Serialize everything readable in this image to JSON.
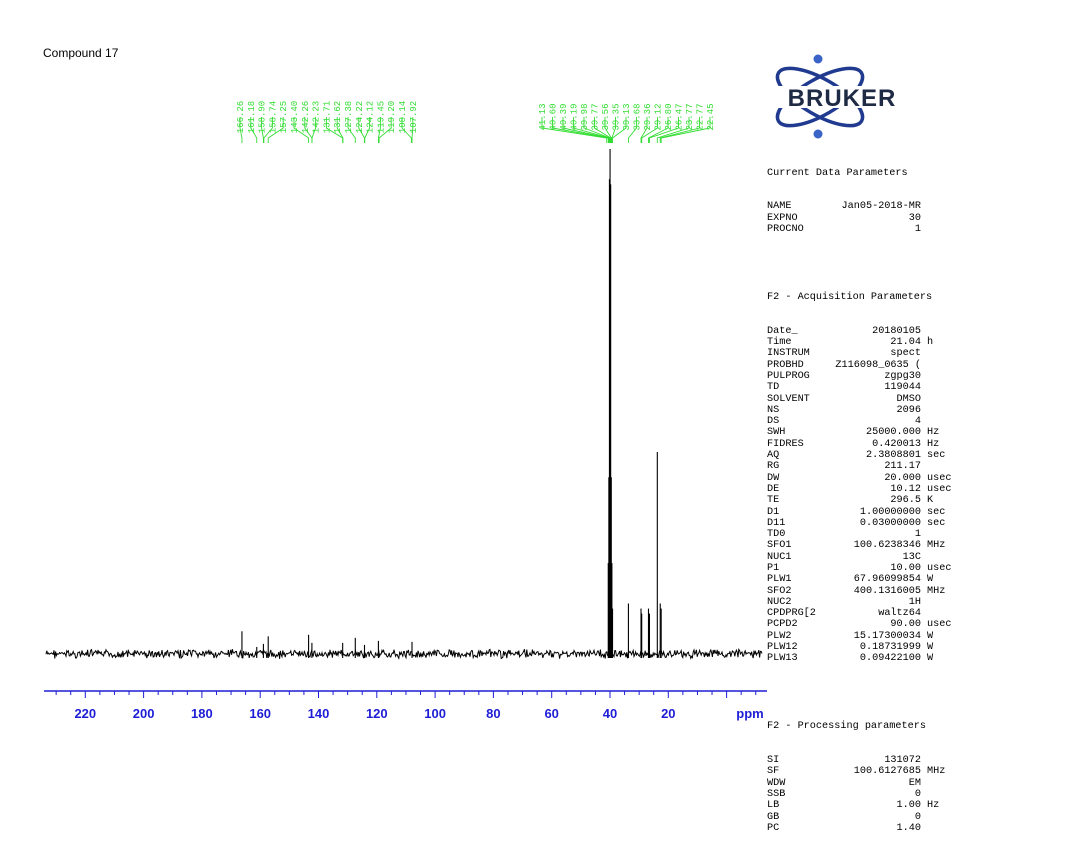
{
  "title": "Compound 17",
  "chart_data": {
    "type": "line",
    "xlabel": "ppm",
    "xlim": [
      235,
      -18
    ],
    "x_ticks": [
      220,
      200,
      180,
      160,
      140,
      120,
      100,
      80,
      60,
      40,
      20
    ],
    "x_tick_labels": [
      "220",
      "200",
      "180",
      "160",
      "140",
      "120",
      "100",
      "80",
      "60",
      "40",
      "20"
    ],
    "axis_color": "#1d1dd6",
    "label_color": "#33dd33",
    "grid": false,
    "peak_labels_group1": [
      "166.26",
      "161.18",
      "158.90",
      "158.74",
      "157.25",
      "143.40",
      "142.26",
      "142.23",
      "131.71",
      "131.62",
      "127.38",
      "124.22",
      "124.12",
      "119.45",
      "119.20",
      "108.14",
      "107.92"
    ],
    "peak_labels_group2": [
      "41.13",
      "40.60",
      "40.39",
      "40.19",
      "39.98",
      "39.77",
      "39.56",
      "39.35",
      "39.13",
      "33.68",
      "29.36",
      "29.12",
      "26.80",
      "26.47",
      "23.77",
      "22.77",
      "22.45"
    ],
    "peaks": [
      {
        "ppm": 166.26,
        "height": 0.045
      },
      {
        "ppm": 161.18,
        "height": 0.014
      },
      {
        "ppm": 158.9,
        "height": 0.02
      },
      {
        "ppm": 157.25,
        "height": 0.035
      },
      {
        "ppm": 143.4,
        "height": 0.038
      },
      {
        "ppm": 142.26,
        "height": 0.022
      },
      {
        "ppm": 131.71,
        "height": 0.022
      },
      {
        "ppm": 127.38,
        "height": 0.032
      },
      {
        "ppm": 124.22,
        "height": 0.018
      },
      {
        "ppm": 119.45,
        "height": 0.026
      },
      {
        "ppm": 107.92,
        "height": 0.024
      },
      {
        "ppm": 40.6,
        "height": 0.18
      },
      {
        "ppm": 40.39,
        "height": 0.35
      },
      {
        "ppm": 40.19,
        "height": 0.94
      },
      {
        "ppm": 39.98,
        "height": 1.0
      },
      {
        "ppm": 39.77,
        "height": 0.93
      },
      {
        "ppm": 39.56,
        "height": 0.35
      },
      {
        "ppm": 39.35,
        "height": 0.18
      },
      {
        "ppm": 39.13,
        "height": 0.09
      },
      {
        "ppm": 33.68,
        "height": 0.1
      },
      {
        "ppm": 29.36,
        "height": 0.09
      },
      {
        "ppm": 29.12,
        "height": 0.08
      },
      {
        "ppm": 26.8,
        "height": 0.09
      },
      {
        "ppm": 26.47,
        "height": 0.08
      },
      {
        "ppm": 23.77,
        "height": 0.4
      },
      {
        "ppm": 22.77,
        "height": 0.1
      },
      {
        "ppm": 22.45,
        "height": 0.09
      }
    ]
  },
  "logo": {
    "text": "BRUKER",
    "color": "#1f3a8f",
    "dot_color": "#3a63c8"
  },
  "params": {
    "current_title": "Current Data Parameters",
    "current": [
      {
        "name": "NAME",
        "value": "Jan05-2018-MR",
        "unit": ""
      },
      {
        "name": "EXPNO",
        "value": "30",
        "unit": ""
      },
      {
        "name": "PROCNO",
        "value": "1",
        "unit": ""
      }
    ],
    "acq_title": "F2 - Acquisition Parameters",
    "acq": [
      {
        "name": "Date_",
        "value": "20180105",
        "unit": ""
      },
      {
        "name": "Time",
        "value": "21.04",
        "unit": "h"
      },
      {
        "name": "INSTRUM",
        "value": "spect",
        "unit": ""
      },
      {
        "name": "PROBHD",
        "value": "Z116098_0635 (",
        "unit": ""
      },
      {
        "name": "PULPROG",
        "value": "zgpg30",
        "unit": ""
      },
      {
        "name": "TD",
        "value": "119044",
        "unit": ""
      },
      {
        "name": "SOLVENT",
        "value": "DMSO",
        "unit": ""
      },
      {
        "name": "NS",
        "value": "2096",
        "unit": ""
      },
      {
        "name": "DS",
        "value": "4",
        "unit": ""
      },
      {
        "name": "SWH",
        "value": "25000.000",
        "unit": "Hz"
      },
      {
        "name": "FIDRES",
        "value": "0.420013",
        "unit": "Hz"
      },
      {
        "name": "AQ",
        "value": "2.3808801",
        "unit": "sec"
      },
      {
        "name": "RG",
        "value": "211.17",
        "unit": ""
      },
      {
        "name": "DW",
        "value": "20.000",
        "unit": "usec"
      },
      {
        "name": "DE",
        "value": "10.12",
        "unit": "usec"
      },
      {
        "name": "TE",
        "value": "296.5",
        "unit": "K"
      },
      {
        "name": "D1",
        "value": "1.00000000",
        "unit": "sec"
      },
      {
        "name": "D11",
        "value": "0.03000000",
        "unit": "sec"
      },
      {
        "name": "TD0",
        "value": "1",
        "unit": ""
      },
      {
        "name": "SFO1",
        "value": "100.6238346",
        "unit": "MHz"
      },
      {
        "name": "NUC1",
        "value": "13C",
        "unit": ""
      },
      {
        "name": "P1",
        "value": "10.00",
        "unit": "usec"
      },
      {
        "name": "PLW1",
        "value": "67.96099854",
        "unit": "W"
      },
      {
        "name": "SFO2",
        "value": "400.1316005",
        "unit": "MHz"
      },
      {
        "name": "NUC2",
        "value": "1H",
        "unit": ""
      },
      {
        "name": "CPDPRG[2",
        "value": "waltz64",
        "unit": ""
      },
      {
        "name": "PCPD2",
        "value": "90.00",
        "unit": "usec"
      },
      {
        "name": "PLW2",
        "value": "15.17300034",
        "unit": "W"
      },
      {
        "name": "PLW12",
        "value": "0.18731999",
        "unit": "W"
      },
      {
        "name": "PLW13",
        "value": "0.09422100",
        "unit": "W"
      }
    ],
    "proc_title": "F2 - Processing parameters",
    "proc": [
      {
        "name": "SI",
        "value": "131072",
        "unit": ""
      },
      {
        "name": "SF",
        "value": "100.6127685",
        "unit": "MHz"
      },
      {
        "name": "WDW",
        "value": "EM",
        "unit": ""
      },
      {
        "name": "SSB",
        "value": "0",
        "unit": ""
      },
      {
        "name": "LB",
        "value": "1.00",
        "unit": "Hz"
      },
      {
        "name": "GB",
        "value": "0",
        "unit": ""
      },
      {
        "name": "PC",
        "value": "1.40",
        "unit": ""
      }
    ]
  }
}
